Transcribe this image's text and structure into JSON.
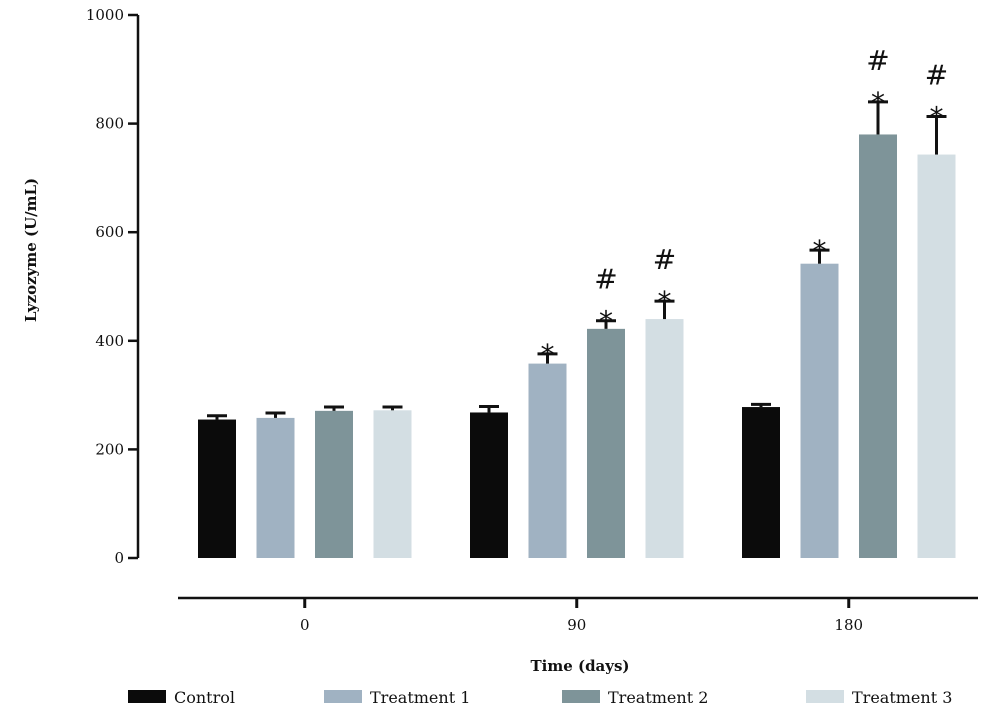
{
  "chart_data": {
    "type": "bar",
    "title": "",
    "ylabel": "Lyzozyme (U/mL)",
    "xlabel": "Time (days)",
    "ylim": [
      0,
      1000
    ],
    "yticks": [
      0,
      200,
      400,
      600,
      800,
      1000
    ],
    "categories": [
      "0",
      "90",
      "180"
    ],
    "series": [
      {
        "name": "Control",
        "color": "#0b0b0b",
        "values": [
          255,
          268,
          278
        ],
        "errors": [
          7,
          11,
          5
        ]
      },
      {
        "name": "Treatment 1",
        "color": "#a0b2c2",
        "values": [
          258,
          358,
          542
        ],
        "errors": [
          9,
          18,
          25
        ]
      },
      {
        "name": "Treatment 2",
        "color": "#7e9499",
        "values": [
          271,
          422,
          780
        ],
        "errors": [
          7,
          15,
          60
        ]
      },
      {
        "name": "Treatment 3",
        "color": "#d3dee3",
        "values": [
          272,
          440,
          743
        ],
        "errors": [
          6,
          33,
          70
        ]
      }
    ],
    "annotations": [
      {
        "category": "90",
        "series": "Treatment 1",
        "text": [
          "*"
        ]
      },
      {
        "category": "90",
        "series": "Treatment 2",
        "text": [
          "#",
          "*"
        ]
      },
      {
        "category": "90",
        "series": "Treatment 3",
        "text": [
          "#",
          "*"
        ]
      },
      {
        "category": "180",
        "series": "Treatment 1",
        "text": [
          "*"
        ]
      },
      {
        "category": "180",
        "series": "Treatment 2",
        "text": [
          "#",
          "*"
        ]
      },
      {
        "category": "180",
        "series": "Treatment 3",
        "text": [
          "#",
          "*"
        ]
      }
    ],
    "legend_position": "bottom",
    "grid": false
  }
}
